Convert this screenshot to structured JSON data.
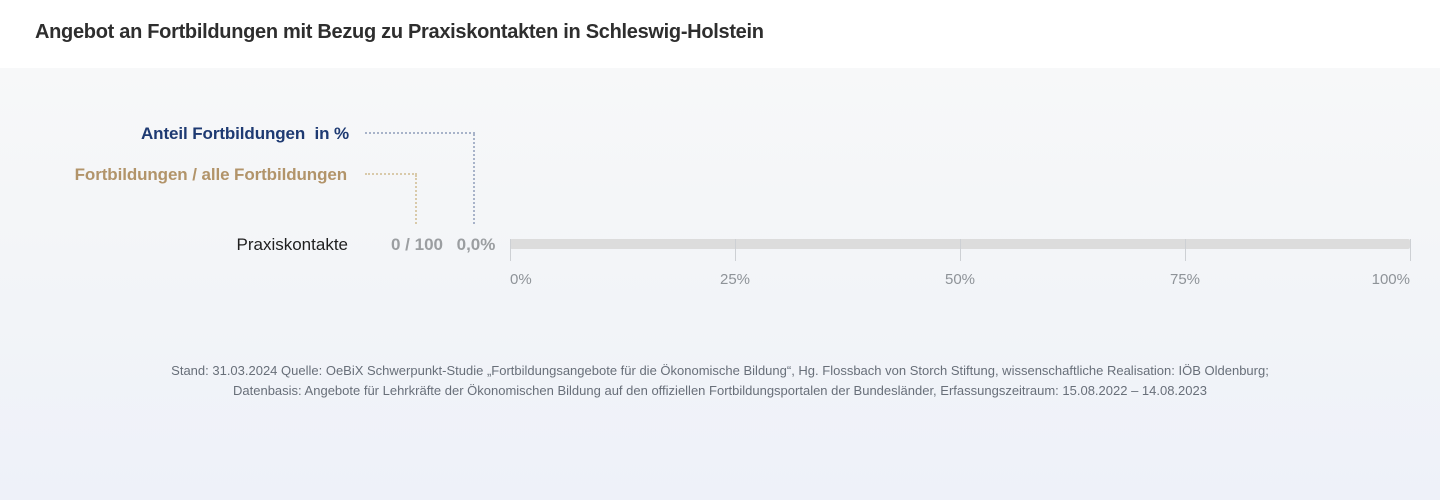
{
  "header": {
    "title": "Angebot an Fortbildungen mit Bezug zu Praxiskontakten in Schleswig-Holstein"
  },
  "legend": {
    "percent_label": "Anteil Fortbildungen  in %",
    "ratio_label": "Fortbildungen / alle Fortbildungen"
  },
  "row": {
    "category": "Praxiskontakte",
    "ratio": "0 / 100",
    "percent": "0,0%"
  },
  "footer": {
    "line1": "Stand: 31.03.2024 Quelle: OeBiX Schwerpunkt-Studie „Fortbildungsangebote für die Ökonomische Bildung“, Hg. Flossbach von Storch Stiftung, wissenschaftliche Realisation: IÖB Oldenburg;",
    "line2": "Datenbasis: Angebote für Lehrkräfte der Ökonomischen Bildung auf den offiziellen Fortbildungsportalen der Bundesländer, Erfassungszeitraum: 15.08.2022 – 14.08.2023"
  },
  "colors": {
    "accent_navy": "#1e3a72",
    "accent_tan": "#b2946a",
    "leader_navy": "#a8b3c9",
    "leader_tan": "#d9caaa",
    "bar_track": "#dcdcdc",
    "value_gray": "#9b9ea1",
    "axis_gray": "#8e9398",
    "background_top": "#f7f8f9",
    "background_bottom": "#eef1f9"
  },
  "chart_data": {
    "type": "bar",
    "orientation": "horizontal",
    "title": "Angebot an Fortbildungen mit Bezug zu Praxiskontakten in Schleswig-Holstein",
    "categories": [
      "Praxiskontakte"
    ],
    "series": [
      {
        "name": "Fortbildungen / alle Fortbildungen",
        "values_text": [
          "0 / 100"
        ],
        "numerator": [
          0
        ],
        "denominator": [
          100
        ]
      },
      {
        "name": "Anteil Fortbildungen  in %",
        "values": [
          0.0
        ],
        "values_text": [
          "0,0%"
        ]
      }
    ],
    "xlabel": "",
    "ylabel": "",
    "xlim": [
      0,
      100
    ],
    "x_ticks": [
      "0%",
      "25%",
      "50%",
      "75%",
      "100%"
    ],
    "x_tick_values": [
      0,
      25,
      50,
      75,
      100
    ],
    "grid": false,
    "legend_position": "top-left"
  }
}
